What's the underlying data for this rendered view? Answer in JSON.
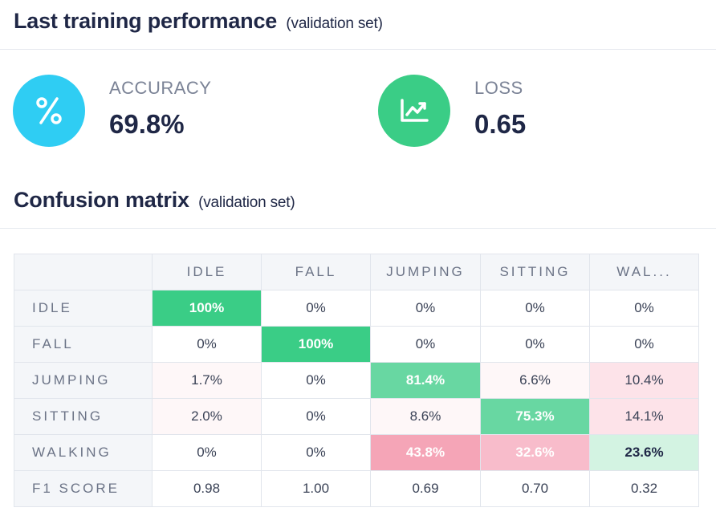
{
  "training": {
    "title": "Last training performance",
    "subtitle": "(validation set)",
    "accuracy": {
      "label": "ACCURACY",
      "value": "69.8%",
      "icon": "percent-icon",
      "icon_color": "#2fcdf3"
    },
    "loss": {
      "label": "LOSS",
      "value": "0.65",
      "icon": "trend-chart-icon",
      "icon_color": "#3acd86"
    }
  },
  "confusion": {
    "title": "Confusion matrix",
    "subtitle": "(validation set)",
    "columns": [
      "IDLE",
      "FALL",
      "JUMPING",
      "SITTING",
      "WAL..."
    ],
    "rows": [
      {
        "label": "IDLE",
        "cells": [
          "100%",
          "0%",
          "0%",
          "0%",
          "0%"
        ]
      },
      {
        "label": "FALL",
        "cells": [
          "0%",
          "100%",
          "0%",
          "0%",
          "0%"
        ]
      },
      {
        "label": "JUMPING",
        "cells": [
          "1.7%",
          "0%",
          "81.4%",
          "6.6%",
          "10.4%"
        ]
      },
      {
        "label": "SITTING",
        "cells": [
          "2.0%",
          "0%",
          "8.6%",
          "75.3%",
          "14.1%"
        ]
      },
      {
        "label": "WALKING",
        "cells": [
          "0%",
          "0%",
          "43.8%",
          "32.6%",
          "23.6%"
        ]
      }
    ],
    "f1": {
      "label": "F1 SCORE",
      "cells": [
        "0.98",
        "1.00",
        "0.69",
        "0.70",
        "0.32"
      ]
    },
    "colors": {
      "correct_high": "#3acd86",
      "correct_mid": "#68d7a2",
      "correct_low": "#d3f3e2",
      "error_high": "#f5a5b7",
      "error_mid": "#f8bccb",
      "error_low": "#fde3e9",
      "error_trace": "#fef7f8"
    }
  }
}
